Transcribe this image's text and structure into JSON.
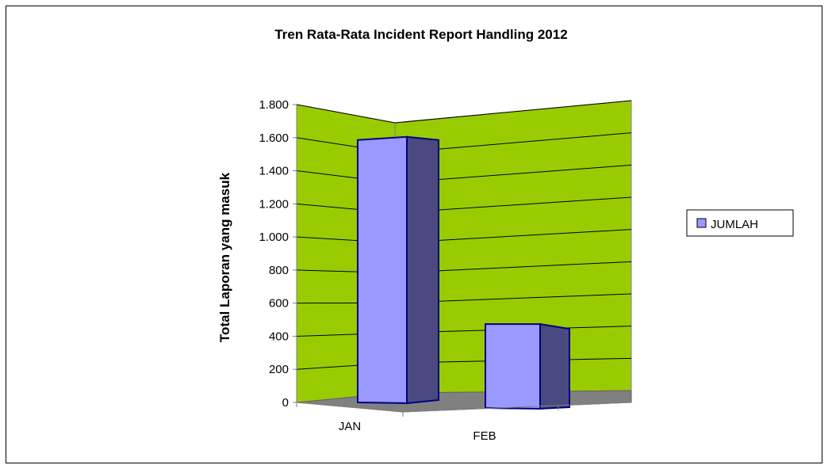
{
  "chart_data": {
    "type": "bar",
    "title": "Tren Rata-Rata Incident Report Handling 2012",
    "ylabel": "Total Laporan yang masuk",
    "xlabel": "",
    "categories": [
      "JAN",
      "FEB"
    ],
    "series": [
      {
        "name": "JUMLAH",
        "values": [
          1700,
          560
        ]
      }
    ],
    "ylim": [
      0,
      1800
    ],
    "yticks": [
      {
        "value": 0,
        "label": "0"
      },
      {
        "value": 200,
        "label": "200"
      },
      {
        "value": 400,
        "label": "400"
      },
      {
        "value": 600,
        "label": "600"
      },
      {
        "value": 800,
        "label": "800"
      },
      {
        "value": 1000,
        "label": "1.000"
      },
      {
        "value": 1200,
        "label": "1.200"
      },
      {
        "value": 1400,
        "label": "1.400"
      },
      {
        "value": 1600,
        "label": "1.600"
      },
      {
        "value": 1800,
        "label": "1.800"
      }
    ],
    "grid": true,
    "legend_position": "right",
    "colors": {
      "wall": "#99CC00",
      "floor": "#808080",
      "bar_front": "#9999FF",
      "bar_side": "#4A4A80",
      "bar_edge": "#000080"
    }
  }
}
